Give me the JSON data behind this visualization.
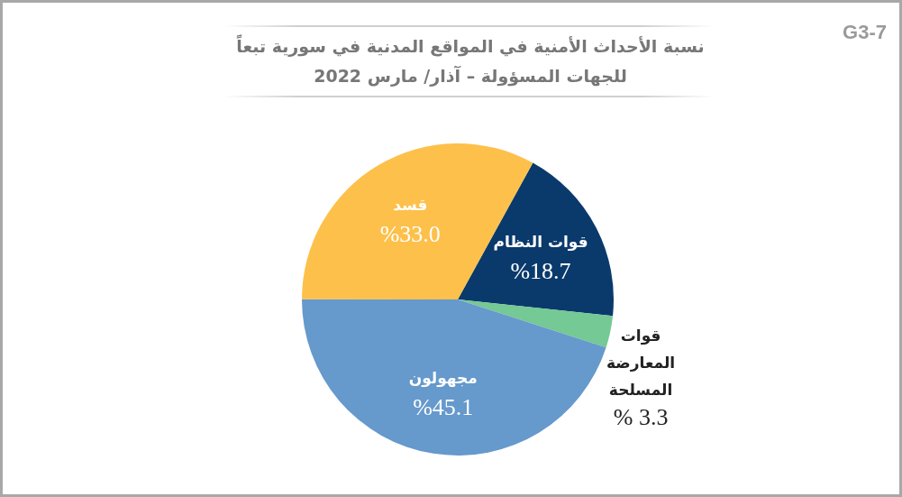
{
  "chart_data": {
    "type": "pie",
    "title": "نسبة الأحداث الأمنية في المواقع المدنية في سورية تبعاً\nللجهات المسؤولة – آذار/ مارس 2022",
    "categories": [
      "قوات النظام",
      "قوات المعارضة المسلحة",
      "مجهولون",
      "قسد"
    ],
    "values": [
      18.7,
      3.3,
      45.1,
      33.0
    ],
    "value_labels": [
      "%18.7",
      "% 3.3",
      "%45.1",
      "%33.0"
    ],
    "colors": [
      "#0a3a6c",
      "#74c994",
      "#6699cc",
      "#fdc04a"
    ],
    "annotations": [
      "G3-7"
    ]
  }
}
